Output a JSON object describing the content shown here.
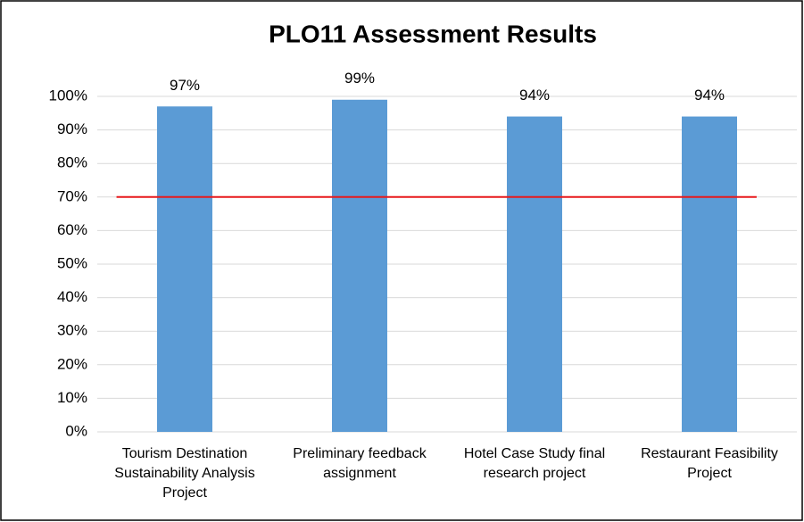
{
  "chart_data": {
    "type": "bar",
    "title": "PLO11 Assessment Results",
    "categories": [
      "Tourism Destination Sustainability Analysis Project",
      "Preliminary feedback assignment",
      "Hotel Case Study final research project",
      "Restaurant Feasibility Project"
    ],
    "values": [
      97,
      99,
      94,
      94
    ],
    "value_labels": [
      "97%",
      "99%",
      "94%",
      "94%"
    ],
    "color": "#5b9bd5",
    "ylim": [
      0,
      100
    ],
    "yticks": [
      {
        "value": 0,
        "label": "0%"
      },
      {
        "value": 10,
        "label": "10%"
      },
      {
        "value": 20,
        "label": "20%"
      },
      {
        "value": 30,
        "label": "30%"
      },
      {
        "value": 40,
        "label": "40%"
      },
      {
        "value": 50,
        "label": "50%"
      },
      {
        "value": 60,
        "label": "60%"
      },
      {
        "value": 70,
        "label": "70%"
      },
      {
        "value": 80,
        "label": "80%"
      },
      {
        "value": 90,
        "label": "90%"
      },
      {
        "value": 100,
        "label": "100%"
      }
    ],
    "grid": true,
    "target_line": {
      "value": 70,
      "color": "#e8191c"
    }
  }
}
